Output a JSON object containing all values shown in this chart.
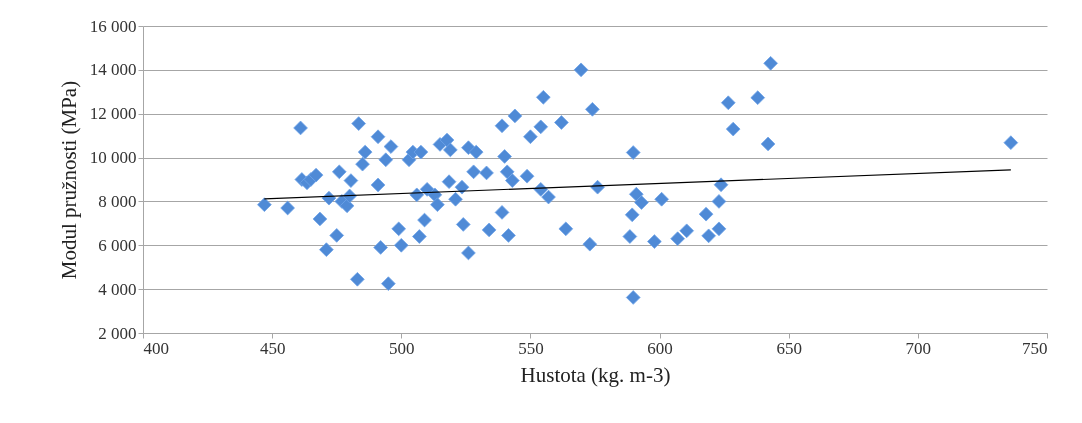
{
  "chart_data": {
    "type": "scatter",
    "xlabel": "Hustota (kg. m-3)",
    "ylabel": "Modul pružnosti (MPa)",
    "xlim": [
      400,
      750
    ],
    "xticks": [
      400,
      450,
      500,
      550,
      600,
      650,
      700,
      750
    ],
    "ylim": [
      2000,
      16000
    ],
    "yticks": [
      {
        "value": 2000,
        "label": "2 000"
      },
      {
        "value": 4000,
        "label": "4 000"
      },
      {
        "value": 6000,
        "label": "6 000"
      },
      {
        "value": 8000,
        "label": "8 000"
      },
      {
        "value": 10000,
        "label": "10 000"
      },
      {
        "value": 12000,
        "label": "12 000"
      },
      {
        "value": 14000,
        "label": "14 000"
      },
      {
        "value": 16000,
        "label": "16 000"
      }
    ],
    "grid": "y",
    "series": [
      {
        "type": "scatter",
        "marker": "diamond",
        "color": "#4f8ad6",
        "x": [
          447,
          456,
          461,
          461.5,
          463.5,
          465,
          467,
          468.5,
          471,
          472,
          475,
          476,
          477,
          479,
          480.5,
          480,
          483,
          483.5,
          485,
          486,
          491,
          491,
          492,
          494,
          496,
          495,
          499,
          500,
          503,
          504.5,
          507.6,
          506,
          507,
          509,
          510,
          513,
          514,
          515,
          517.7,
          518.5,
          519,
          521,
          523.5,
          524,
          526,
          526,
          528,
          529,
          533,
          534,
          539,
          539,
          540,
          541,
          541.5,
          543,
          544,
          548.7,
          550,
          554,
          555,
          554,
          557,
          562,
          563.7,
          569.6,
          573,
          574,
          576,
          588.5,
          589.8,
          591,
          593,
          589.4,
          589.8,
          600.8,
          598,
          607,
          610.5,
          618,
          619,
          623,
          623,
          623.8,
          626.6,
          628.5,
          638,
          643,
          642,
          736
        ],
        "values": [
          7850,
          7700,
          11350,
          9000,
          8850,
          9000,
          9200,
          7200,
          5800,
          8150,
          6450,
          9350,
          8000,
          7800,
          8950,
          8250,
          4450,
          11550,
          9700,
          10250,
          10950,
          8750,
          5900,
          9900,
          10500,
          4250,
          6750,
          6000,
          9900,
          10250,
          10250,
          8300,
          6400,
          7150,
          8550,
          8300,
          7850,
          10600,
          10800,
          8900,
          10350,
          8100,
          8650,
          6950,
          5650,
          10450,
          9350,
          10250,
          9300,
          6700,
          7500,
          11450,
          10050,
          9350,
          6450,
          8950,
          11900,
          9150,
          10950,
          11400,
          12750,
          8550,
          8200,
          11600,
          6750,
          14000,
          6050,
          12200,
          8650,
          6400,
          10230,
          8330,
          7950,
          7390,
          3620,
          8100,
          6170,
          6300,
          6660,
          7420,
          6430,
          6750,
          8000,
          8760,
          12500,
          11300,
          12730,
          14300,
          10620,
          10680
        ]
      },
      {
        "type": "line",
        "color": "#000000",
        "x": [
          447,
          736
        ],
        "values": [
          8120,
          9440
        ]
      }
    ]
  }
}
